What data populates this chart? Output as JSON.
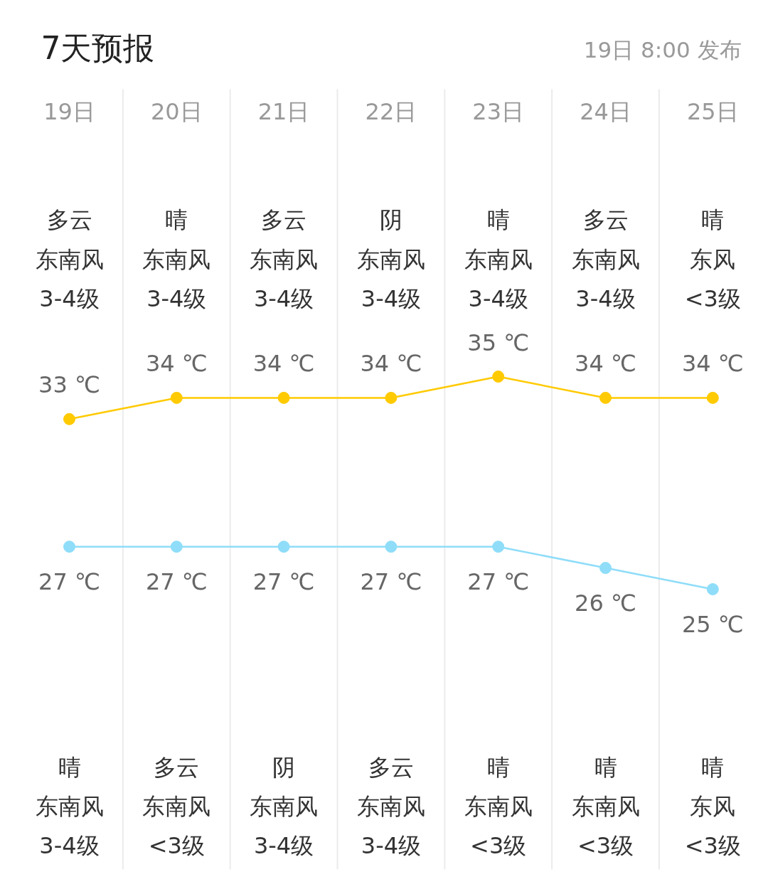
{
  "chart_data": {
    "type": "line",
    "title": "7天预报",
    "subtitle": "19日 8:00 发布",
    "categories": [
      "19日",
      "20日",
      "21日",
      "22日",
      "23日",
      "24日",
      "25日"
    ],
    "series": [
      {
        "color": "#ffca00",
        "values": [
          33,
          34,
          34,
          34,
          35,
          34,
          34
        ],
        "value_labels": [
          "33 ℃",
          "34 ℃",
          "34 ℃",
          "34 ℃",
          "35 ℃",
          "34 ℃",
          "34 ℃"
        ]
      },
      {
        "color": "#8fddf9",
        "values": [
          27,
          27,
          27,
          27,
          27,
          26,
          25
        ],
        "value_labels": [
          "27 ℃",
          "27 ℃",
          "27 ℃",
          "27 ℃",
          "27 ℃",
          "26 ℃",
          "25 ℃"
        ]
      }
    ],
    "marker": "circle",
    "line_style": "solid",
    "grid": "x",
    "tick_labels": "x",
    "annotations": [
      "多云",
      "晴",
      "多云",
      "阴",
      "晴",
      "多云",
      "晴",
      "东南风",
      "东南风",
      "东南风",
      "东南风",
      "东南风",
      "东南风",
      "东风",
      "3-4级",
      "3-4级",
      "3-4级",
      "3-4级",
      "3-4级",
      "3-4级",
      "<3级",
      "晴",
      "多云",
      "阴",
      "多云",
      "晴",
      "晴",
      "晴",
      "东南风",
      "东南风",
      "东南风",
      "东南风",
      "东南风",
      "东南风",
      "东风",
      "3-4级",
      "<3级",
      "3-4级",
      "3-4级",
      "<3级",
      "<3级",
      "<3级"
    ]
  }
}
